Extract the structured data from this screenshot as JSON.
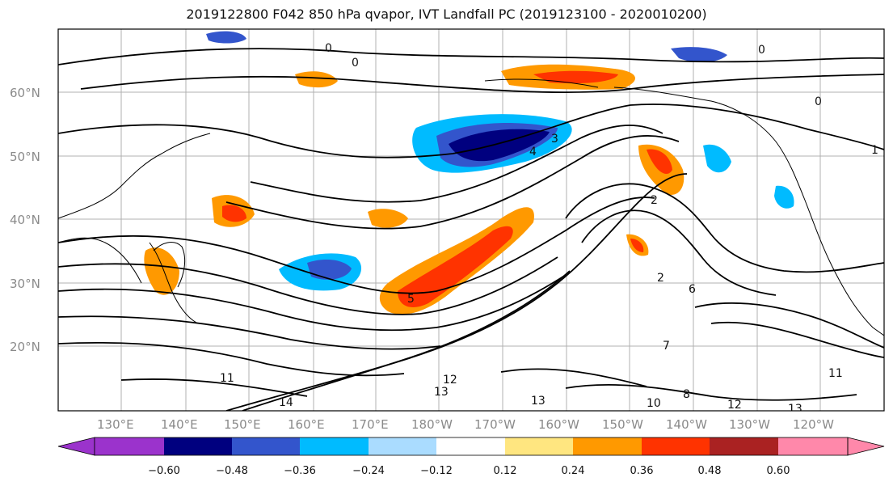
{
  "title": "2019122800 F042 850 hPa qvapor, IVT Landfall PC (2019123100 - 2020010200)",
  "lat_labels": [
    "60°N",
    "50°N",
    "40°N",
    "30°N",
    "20°N"
  ],
  "lon_labels": [
    "130°E",
    "140°E",
    "150°E",
    "160°E",
    "170°E",
    "180°W",
    "170°W",
    "160°W",
    "150°W",
    "140°W",
    "130°W",
    "120°W"
  ],
  "colorbar": {
    "colors": [
      "#9b33cc",
      "#00007f",
      "#3355cc",
      "#00bbff",
      "#aadcff",
      "#ffffff",
      "#ffe680",
      "#ff9900",
      "#ff3300",
      "#aa2222",
      "#ff88aa"
    ],
    "tick_labels": [
      "−0.60",
      "−0.48",
      "−0.36",
      "−0.24",
      "−0.12",
      "0.12",
      "0.24",
      "0.36",
      "0.48",
      "0.60"
    ]
  },
  "contour_labels": [
    "0",
    "0",
    "0",
    "0",
    "3",
    "4",
    "2",
    "2",
    "6",
    "5",
    "11",
    "12",
    "13",
    "13",
    "14",
    "10",
    "12",
    "13",
    "11",
    "8",
    "1",
    "7"
  ]
}
